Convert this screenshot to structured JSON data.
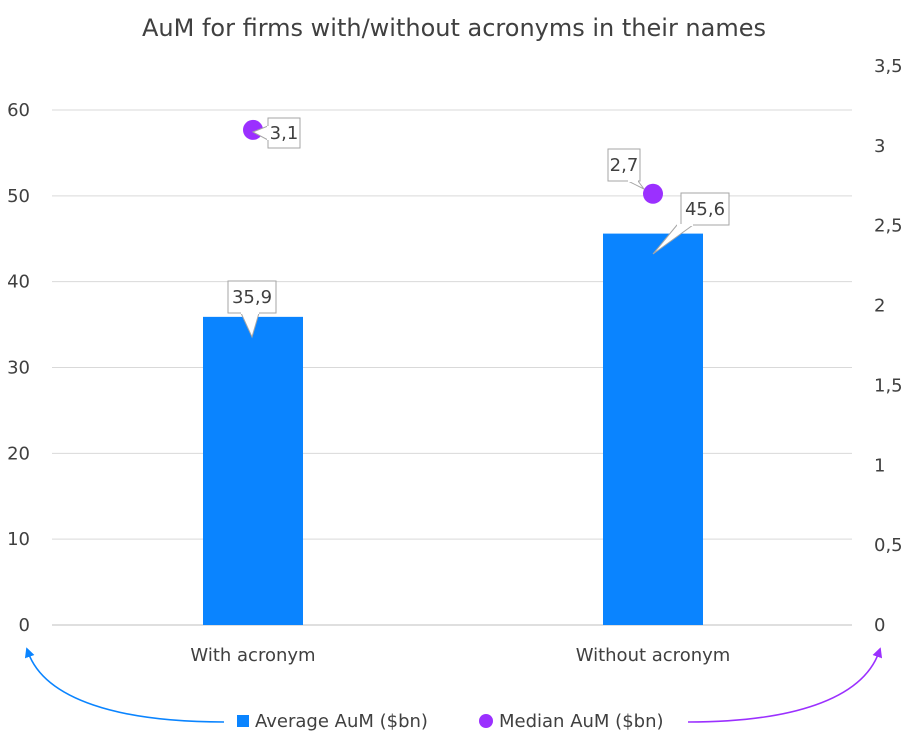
{
  "chart_data": {
    "type": "bar",
    "title": "AuM for firms with/without acronyms in their names",
    "categories": [
      "With acronym",
      "Without acronym"
    ],
    "series": [
      {
        "name": "Average AuM ($bn)",
        "type": "bar",
        "axis": "left",
        "color": "#0A84FF",
        "values": [
          35.9,
          45.6
        ],
        "data_labels": [
          "35,9",
          "45,6"
        ]
      },
      {
        "name": "Median AuM ($bn)",
        "type": "scatter",
        "axis": "right",
        "color": "#9B30FF",
        "values": [
          3.1,
          2.7
        ],
        "data_labels": [
          "3,1",
          "2,7"
        ]
      }
    ],
    "y_left": {
      "ylim": [
        0,
        60
      ],
      "ticks": [
        0,
        10,
        20,
        30,
        40,
        50,
        60
      ],
      "tick_labels": [
        "0",
        "10",
        "20",
        "30",
        "40",
        "50",
        "60"
      ]
    },
    "y_right": {
      "ylim": [
        0,
        3.5
      ],
      "ticks": [
        0,
        0.5,
        1,
        1.5,
        2,
        2.5,
        3,
        3.5
      ],
      "tick_labels": [
        "0",
        "0,5",
        "1",
        "1,5",
        "2",
        "2,5",
        "3",
        "3,5"
      ]
    },
    "grid": true,
    "legend_position": "bottom",
    "annotation_arrows": [
      {
        "from_series": "Average AuM ($bn)",
        "to_axis": "left",
        "color": "#0A84FF"
      },
      {
        "from_series": "Median AuM ($bn)",
        "to_axis": "right",
        "color": "#9B30FF"
      }
    ]
  }
}
